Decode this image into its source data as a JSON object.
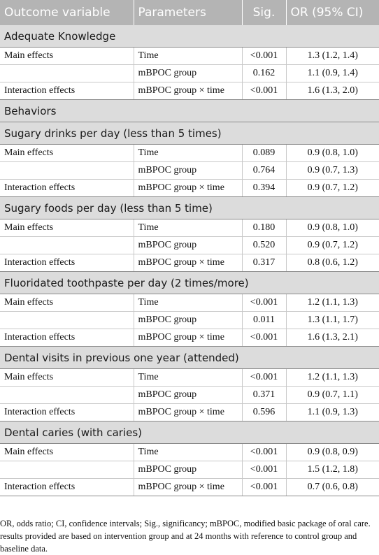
{
  "header": {
    "outcome": "Outcome variable",
    "parameters": "Parameters",
    "sig": "Sig.",
    "or": "OR (95% CI)"
  },
  "sections": [
    {
      "title": "Adequate Knowledge",
      "rows": [
        {
          "effect": "Main effects",
          "param": "Time",
          "sig": "<0.001",
          "or": "1.3 (1.2, 1.4)"
        },
        {
          "effect": "",
          "param": "mBPOC group",
          "sig": "0.162",
          "or": "1.1 (0.9, 1.4)"
        },
        {
          "effect": "Interaction effects",
          "param": "mBPOC group × time",
          "sig": "<0.001",
          "or": "1.6 (1.3, 2.0)"
        }
      ]
    },
    {
      "title": "Behaviors",
      "rows": []
    },
    {
      "title": "Sugary drinks per day (less than 5 times)",
      "rows": [
        {
          "effect": "Main effects",
          "param": "Time",
          "sig": "0.089",
          "or": "0.9 (0.8, 1.0)"
        },
        {
          "effect": "",
          "param": "mBPOC group",
          "sig": "0.764",
          "or": "0.9 (0.7, 1.3)"
        },
        {
          "effect": "Interaction effects",
          "param": "mBPOC group × time",
          "sig": "0.394",
          "or": "0.9 (0.7, 1.2)"
        }
      ]
    },
    {
      "title": "Sugary foods per day (less than 5 time)",
      "rows": [
        {
          "effect": "Main effects",
          "param": "Time",
          "sig": "0.180",
          "or": "0.9 (0.8, 1.0)"
        },
        {
          "effect": "",
          "param": "mBPOC group",
          "sig": "0.520",
          "or": "0.9 (0.7, 1.2)"
        },
        {
          "effect": "Interaction effects",
          "param": "mBPOC group × time",
          "sig": "0.317",
          "or": "0.8 (0.6, 1.2)"
        }
      ]
    },
    {
      "title": "Fluoridated toothpaste per day (2 times/more)",
      "rows": [
        {
          "effect": "Main effects",
          "param": "Time",
          "sig": "<0.001",
          "or": "1.2 (1.1, 1.3)"
        },
        {
          "effect": "",
          "param": "mBPOC group",
          "sig": "0.011",
          "or": "1.3 (1.1, 1.7)"
        },
        {
          "effect": "Interaction effects",
          "param": "mBPOC group × time",
          "sig": "<0.001",
          "or": "1.6 (1.3, 2.1)"
        }
      ]
    },
    {
      "title": "Dental visits in previous one year (attended)",
      "rows": [
        {
          "effect": "Main effects",
          "param": "Time",
          "sig": "<0.001",
          "or": "1.2 (1.1, 1.3)"
        },
        {
          "effect": "",
          "param": "mBPOC group",
          "sig": "0.371",
          "or": "0.9 (0.7, 1.1)"
        },
        {
          "effect": "Interaction effects",
          "param": "mBPOC group × time",
          "sig": "0.596",
          "or": "1.1 (0.9, 1.3)"
        }
      ]
    },
    {
      "title": "Dental caries (with caries)",
      "rows": [
        {
          "effect": "Main effects",
          "param": "Time",
          "sig": "<0.001",
          "or": "0.9 (0.8, 0.9)"
        },
        {
          "effect": "",
          "param": "mBPOC group",
          "sig": "<0.001",
          "or": "1.5 (1.2, 1.8)"
        },
        {
          "effect": "Interaction effects",
          "param": "mBPOC group × time",
          "sig": "<0.001",
          "or": "0.7 (0.6, 0.8)"
        }
      ]
    }
  ],
  "footnote": "OR, odds ratio; CI, confidence intervals; Sig., significancy; mBPOC, modified basic package of oral care. results provided are based on intervention group and at 24 months with reference to control group and baseline data.",
  "colors": {
    "header_bg": "#b4b4b4",
    "section_bg": "#dcdcdc",
    "header_text": "#ffffff"
  }
}
